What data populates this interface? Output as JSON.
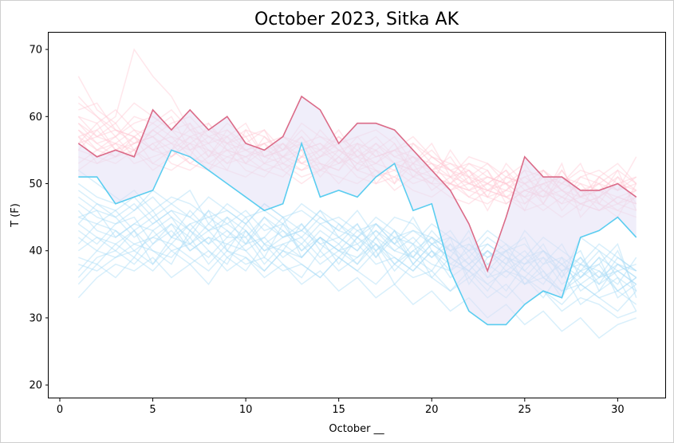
{
  "chart_data": {
    "type": "line",
    "title": "October 2023, Sitka AK",
    "xlabel": "October __",
    "ylabel": "T (F)",
    "xlim": [
      -0.6,
      32.6
    ],
    "ylim": [
      18,
      72.5
    ],
    "xticks": [
      0,
      5,
      10,
      15,
      20,
      25,
      30
    ],
    "yticks": [
      20,
      30,
      40,
      50,
      60,
      70
    ],
    "grid": false,
    "colors": {
      "high": "#db6b88",
      "low": "#5bcdf0",
      "band": "#e4e0f5",
      "hist_high": "#ffc8d2",
      "hist_low": "#a8dcf6"
    },
    "x": [
      1,
      2,
      3,
      4,
      5,
      6,
      7,
      8,
      9,
      10,
      11,
      12,
      13,
      14,
      15,
      16,
      17,
      18,
      19,
      20,
      21,
      22,
      23,
      24,
      25,
      26,
      27,
      28,
      29,
      30,
      31
    ],
    "series": [
      {
        "role": "high",
        "values": [
          56,
          54,
          55,
          54,
          61,
          58,
          61,
          58,
          60,
          56,
          55,
          57,
          63,
          61,
          56,
          59,
          59,
          58,
          55,
          52,
          49,
          44,
          37,
          45,
          54,
          51,
          51,
          49,
          49,
          50,
          48
        ]
      },
      {
        "role": "low",
        "values": [
          51,
          51,
          47,
          48,
          49,
          55,
          54,
          52,
          50,
          48,
          46,
          47,
          56,
          48,
          49,
          48,
          51,
          53,
          46,
          47,
          37,
          31,
          29,
          29,
          32,
          34,
          33,
          42,
          43,
          45,
          42
        ]
      }
    ],
    "historical_high_series": [
      [
        59,
        57,
        58,
        57,
        55,
        56,
        58,
        55,
        54,
        55,
        53,
        54,
        56,
        52,
        53,
        54,
        55,
        53,
        52,
        51,
        50,
        49,
        50,
        48,
        49,
        50,
        51,
        49,
        48,
        50,
        49
      ],
      [
        62,
        60,
        57,
        59,
        60,
        58,
        57,
        58,
        56,
        57,
        58,
        55,
        56,
        57,
        55,
        56,
        54,
        55,
        56,
        54,
        52,
        53,
        51,
        50,
        52,
        51,
        50,
        52,
        51,
        49,
        50
      ],
      [
        55,
        54,
        56,
        53,
        54,
        55,
        53,
        52,
        54,
        53,
        52,
        53,
        51,
        52,
        54,
        51,
        50,
        51,
        53,
        52,
        51,
        50,
        49,
        51,
        50,
        48,
        49,
        47,
        48,
        50,
        48
      ],
      [
        57,
        58,
        55,
        56,
        57,
        54,
        56,
        55,
        53,
        54,
        56,
        52,
        54,
        53,
        52,
        55,
        53,
        52,
        50,
        51,
        49,
        50,
        52,
        48,
        47,
        49,
        48,
        50,
        49,
        47,
        46
      ],
      [
        60,
        59,
        61,
        58,
        57,
        59,
        60,
        57,
        58,
        56,
        55,
        57,
        56,
        55,
        57,
        54,
        56,
        53,
        54,
        52,
        53,
        51,
        50,
        52,
        49,
        50,
        51,
        48,
        50,
        49,
        51
      ],
      [
        53,
        55,
        54,
        55,
        53,
        52,
        54,
        53,
        52,
        51,
        53,
        52,
        50,
        52,
        51,
        50,
        52,
        49,
        51,
        50,
        48,
        47,
        49,
        48,
        46,
        47,
        45,
        47,
        46,
        48,
        47
      ],
      [
        58,
        56,
        57,
        60,
        59,
        57,
        56,
        58,
        57,
        59,
        54,
        55,
        57,
        54,
        55,
        53,
        54,
        55,
        52,
        53,
        51,
        52,
        50,
        49,
        51,
        52,
        49,
        48,
        47,
        46,
        48
      ],
      [
        66,
        61,
        59,
        62,
        60,
        58,
        59,
        56,
        57,
        55,
        56,
        54,
        55,
        56,
        53,
        55,
        57,
        54,
        53,
        55,
        52,
        50,
        51,
        50,
        48,
        49,
        47,
        48,
        49,
        48,
        47
      ],
      [
        56,
        57,
        56,
        55,
        58,
        56,
        55,
        57,
        55,
        54,
        55,
        56,
        53,
        54,
        56,
        52,
        51,
        53,
        52,
        50,
        50,
        49,
        48,
        47,
        49,
        48,
        50,
        49,
        46,
        47,
        49
      ],
      [
        54,
        53,
        55,
        54,
        56,
        53,
        52,
        54,
        55,
        52,
        51,
        54,
        52,
        53,
        50,
        53,
        52,
        51,
        49,
        48,
        50,
        48,
        47,
        49,
        48,
        46,
        48,
        47,
        48,
        46,
        45
      ],
      [
        61,
        62,
        58,
        57,
        59,
        61,
        58,
        59,
        56,
        58,
        57,
        55,
        58,
        55,
        56,
        57,
        54,
        55,
        54,
        53,
        52,
        51,
        53,
        51,
        50,
        52,
        49,
        51,
        50,
        52,
        50
      ],
      [
        57,
        55,
        56,
        58,
        55,
        54,
        57,
        56,
        53,
        56,
        54,
        53,
        55,
        56,
        54,
        52,
        53,
        56,
        51,
        52,
        54,
        50,
        49,
        50,
        51,
        49,
        52,
        48,
        49,
        51,
        47
      ],
      [
        55,
        58,
        60,
        70,
        66,
        63,
        58,
        57,
        56,
        55,
        54,
        56,
        53,
        52,
        55,
        54,
        51,
        52,
        54,
        51,
        50,
        52,
        49,
        48,
        50,
        51,
        49,
        47,
        46,
        48,
        49
      ],
      [
        59,
        56,
        54,
        56,
        57,
        55,
        59,
        54,
        57,
        53,
        55,
        54,
        57,
        53,
        52,
        56,
        55,
        50,
        53,
        49,
        51,
        48,
        50,
        52,
        47,
        50,
        48,
        46,
        51,
        49,
        54
      ],
      [
        63,
        60,
        58,
        56,
        58,
        60,
        55,
        56,
        59,
        57,
        53,
        56,
        54,
        58,
        55,
        53,
        56,
        54,
        55,
        52,
        49,
        51,
        48,
        49,
        52,
        47,
        51,
        50,
        47,
        45,
        50
      ],
      [
        52,
        54,
        53,
        55,
        52,
        54,
        56,
        53,
        55,
        54,
        52,
        51,
        54,
        55,
        53,
        56,
        50,
        53,
        51,
        54,
        52,
        49,
        51,
        50,
        48,
        51,
        46,
        49,
        50,
        47,
        48
      ],
      [
        58,
        55,
        57,
        54,
        56,
        57,
        54,
        59,
        55,
        56,
        58,
        53,
        52,
        54,
        57,
        55,
        52,
        50,
        56,
        53,
        50,
        53,
        52,
        47,
        49,
        48,
        53,
        45,
        48,
        52,
        46
      ],
      [
        56,
        59,
        55,
        57,
        53,
        55,
        57,
        54,
        58,
        55,
        56,
        57,
        55,
        51,
        54,
        57,
        58,
        56,
        52,
        50,
        55,
        51,
        46,
        51,
        53,
        49,
        47,
        51,
        52,
        50,
        51
      ],
      [
        60,
        57,
        59,
        55,
        58,
        56,
        53,
        55,
        52,
        58,
        54,
        55,
        59,
        57,
        56,
        52,
        55,
        57,
        53,
        56,
        51,
        54,
        53,
        50,
        46,
        52,
        50,
        53,
        47,
        51,
        49
      ],
      [
        57,
        53,
        54,
        57,
        55,
        58,
        55,
        52,
        56,
        53,
        57,
        54,
        53,
        55,
        58,
        54,
        53,
        55,
        57,
        54,
        53,
        52,
        48,
        53,
        50,
        47,
        52,
        48,
        51,
        53,
        50
      ]
    ],
    "historical_low_series": [
      [
        48,
        46,
        45,
        47,
        44,
        46,
        45,
        43,
        44,
        46,
        43,
        44,
        42,
        45,
        43,
        42,
        44,
        41,
        43,
        42,
        40,
        41,
        39,
        40,
        38,
        39,
        37,
        38,
        36,
        37,
        35
      ],
      [
        45,
        44,
        46,
        43,
        45,
        42,
        44,
        45,
        43,
        41,
        44,
        42,
        43,
        41,
        42,
        44,
        40,
        42,
        41,
        39,
        41,
        38,
        40,
        37,
        39,
        36,
        38,
        35,
        37,
        34,
        36
      ],
      [
        42,
        40,
        43,
        41,
        42,
        44,
        40,
        42,
        41,
        43,
        40,
        41,
        39,
        42,
        40,
        39,
        41,
        38,
        40,
        38,
        37,
        39,
        36,
        37,
        35,
        36,
        34,
        35,
        33,
        34,
        32
      ],
      [
        50,
        48,
        47,
        49,
        46,
        48,
        47,
        45,
        46,
        44,
        47,
        45,
        46,
        44,
        45,
        43,
        44,
        42,
        43,
        41,
        42,
        40,
        41,
        39,
        38,
        40,
        37,
        39,
        36,
        38,
        37
      ],
      [
        38,
        37,
        39,
        40,
        38,
        41,
        39,
        37,
        40,
        38,
        39,
        37,
        38,
        36,
        39,
        37,
        35,
        38,
        36,
        37,
        34,
        36,
        33,
        35,
        32,
        34,
        31,
        33,
        32,
        30,
        31
      ],
      [
        33,
        36,
        38,
        37,
        39,
        36,
        38,
        40,
        37,
        39,
        36,
        38,
        35,
        37,
        34,
        36,
        33,
        35,
        32,
        34,
        31,
        33,
        30,
        32,
        29,
        31,
        28,
        30,
        27,
        29,
        30
      ],
      [
        47,
        45,
        44,
        46,
        48,
        45,
        43,
        46,
        44,
        42,
        45,
        43,
        41,
        44,
        42,
        40,
        43,
        41,
        39,
        42,
        40,
        38,
        41,
        39,
        37,
        40,
        38,
        36,
        39,
        37,
        35
      ],
      [
        44,
        47,
        45,
        42,
        44,
        46,
        43,
        41,
        45,
        43,
        40,
        42,
        44,
        41,
        39,
        42,
        40,
        43,
        38,
        41,
        39,
        37,
        40,
        38,
        36,
        39,
        35,
        37,
        38,
        34,
        36
      ],
      [
        52,
        50,
        48,
        46,
        49,
        47,
        45,
        48,
        46,
        44,
        47,
        45,
        43,
        46,
        44,
        42,
        45,
        43,
        41,
        44,
        42,
        40,
        43,
        41,
        39,
        42,
        40,
        38,
        41,
        39,
        37
      ],
      [
        40,
        42,
        41,
        43,
        40,
        39,
        42,
        38,
        41,
        40,
        37,
        40,
        38,
        36,
        39,
        37,
        40,
        35,
        38,
        36,
        34,
        37,
        35,
        33,
        36,
        34,
        32,
        35,
        33,
        31,
        34
      ],
      [
        46,
        43,
        42,
        44,
        43,
        45,
        41,
        44,
        42,
        45,
        41,
        43,
        40,
        43,
        41,
        38,
        42,
        40,
        39,
        37,
        41,
        36,
        38,
        40,
        35,
        37,
        34,
        36,
        39,
        33,
        35
      ],
      [
        36,
        39,
        40,
        38,
        41,
        43,
        40,
        42,
        39,
        41,
        42,
        39,
        41,
        38,
        40,
        41,
        38,
        39,
        37,
        40,
        36,
        38,
        35,
        37,
        36,
        33,
        37,
        32,
        34,
        36,
        31
      ],
      [
        49,
        47,
        46,
        48,
        45,
        47,
        49,
        44,
        47,
        45,
        46,
        44,
        47,
        45,
        43,
        46,
        42,
        45,
        44,
        41,
        43,
        39,
        42,
        40,
        41,
        38,
        39,
        37,
        40,
        38,
        36
      ],
      [
        41,
        44,
        43,
        40,
        42,
        41,
        44,
        41,
        43,
        40,
        42,
        45,
        39,
        42,
        40,
        43,
        41,
        37,
        40,
        42,
        38,
        40,
        37,
        34,
        38,
        41,
        36,
        39,
        35,
        37,
        38
      ],
      [
        43,
        41,
        44,
        45,
        41,
        44,
        42,
        46,
        40,
        44,
        41,
        40,
        44,
        40,
        44,
        41,
        43,
        40,
        42,
        39,
        42,
        35,
        39,
        41,
        37,
        35,
        39,
        34,
        36,
        40,
        34
      ],
      [
        39,
        38,
        41,
        39,
        43,
        40,
        41,
        39,
        42,
        42,
        38,
        41,
        42,
        39,
        41,
        44,
        39,
        42,
        38,
        41,
        39,
        37,
        34,
        38,
        40,
        37,
        33,
        38,
        37,
        35,
        39
      ],
      [
        45,
        46,
        42,
        44,
        46,
        42,
        46,
        43,
        45,
        41,
        45,
        42,
        43,
        46,
        42,
        40,
        44,
        41,
        45,
        40,
        37,
        41,
        38,
        36,
        39,
        40,
        38,
        40,
        34,
        38,
        36
      ],
      [
        37,
        40,
        39,
        41,
        40,
        38,
        43,
        40,
        38,
        43,
        39,
        44,
        40,
        42,
        38,
        42,
        39,
        43,
        39,
        43,
        40,
        42,
        36,
        39,
        35,
        38,
        41,
        36,
        38,
        41,
        33
      ],
      [
        35,
        38,
        36,
        39,
        37,
        40,
        38,
        35,
        39,
        37,
        41,
        38,
        36,
        40,
        37,
        39,
        42,
        38,
        41,
        36,
        39,
        43,
        37,
        40,
        42,
        36,
        34,
        37,
        35,
        39,
        37
      ],
      [
        44,
        42,
        40,
        43,
        38,
        42,
        41,
        43,
        40,
        39,
        37,
        40,
        39,
        42,
        40,
        38,
        41,
        39,
        37,
        40,
        38,
        37,
        40,
        38,
        43,
        40,
        36,
        42,
        40,
        36,
        34
      ]
    ]
  }
}
